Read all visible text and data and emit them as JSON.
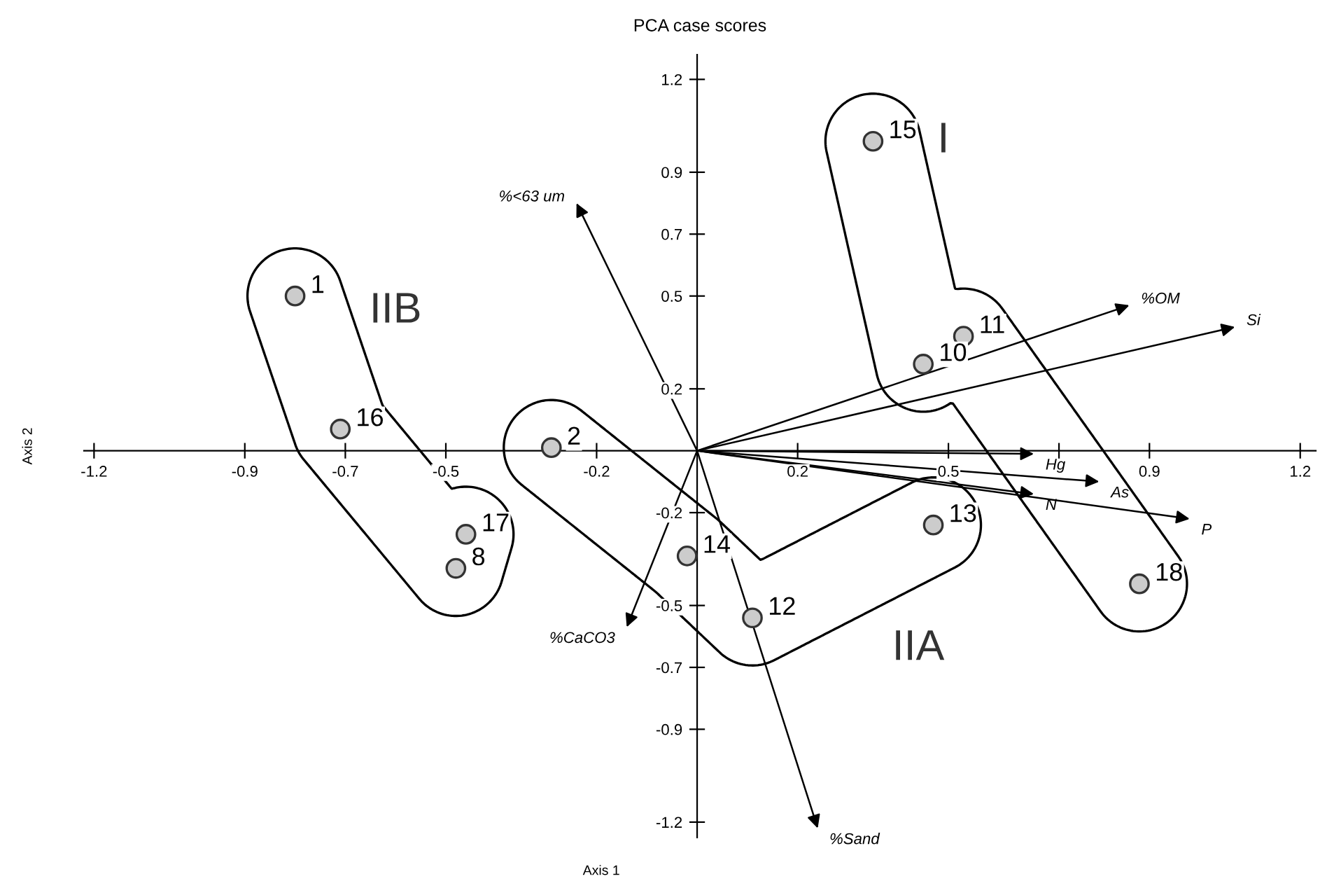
{
  "chart_data": {
    "type": "scatter",
    "title": "PCA case scores",
    "xlabel": "Axis 1",
    "ylabel": "Axis 2",
    "xlim": [
      -1.22,
      1.231
    ],
    "ylim": [
      -1.25,
      1.28
    ],
    "xticks": [
      -1.2,
      -0.9,
      -0.7,
      -0.5,
      -0.2,
      0.2,
      0.5,
      {
        "value": 0.72,
        "label": null
      },
      0.9,
      1.2
    ],
    "yticks": [
      1.2,
      0.9,
      0.7,
      0.5,
      0.2,
      -0.2,
      -0.5,
      -0.7,
      -0.9,
      -1.2
    ],
    "marker": "circle",
    "grid": false,
    "series": [
      {
        "name": "I",
        "color": "#333333",
        "x": [
          0.35,
          0.45,
          0.53,
          0.88
        ],
        "values": [
          1.0,
          0.28,
          0.37,
          -0.43
        ]
      },
      {
        "name": "IIA",
        "color": "#333333",
        "x": [
          -0.29,
          -0.02,
          0.11,
          0.47
        ],
        "values": [
          0.01,
          -0.34,
          -0.54,
          -0.24
        ]
      },
      {
        "name": "IIB",
        "color": "#333333",
        "x": [
          -0.8,
          -0.71,
          -0.48,
          -0.46
        ],
        "values": [
          0.5,
          0.07,
          -0.38,
          -0.27
        ]
      }
    ],
    "annotations": [
      {
        "text": "15",
        "x": 0.35,
        "y": 1.0
      },
      {
        "text": "10",
        "x": 0.45,
        "y": 0.28
      },
      {
        "text": "11",
        "x": 0.53,
        "y": 0.37
      },
      {
        "text": "18",
        "x": 0.88,
        "y": -0.43
      },
      {
        "text": "2",
        "x": -0.29,
        "y": 0.01
      },
      {
        "text": "14",
        "x": -0.02,
        "y": -0.34
      },
      {
        "text": "12",
        "x": 0.11,
        "y": -0.54
      },
      {
        "text": "13",
        "x": 0.47,
        "y": -0.24
      },
      {
        "text": "1",
        "x": -0.8,
        "y": 0.5
      },
      {
        "text": "16",
        "x": -0.71,
        "y": 0.07
      },
      {
        "text": "8",
        "x": -0.48,
        "y": -0.38
      },
      {
        "text": "17",
        "x": -0.46,
        "y": -0.27
      },
      "%<63 um",
      "%OM",
      "Si",
      "Hg",
      "As",
      "N",
      "P",
      "%CaCO3",
      "%Sand"
    ]
  }
}
